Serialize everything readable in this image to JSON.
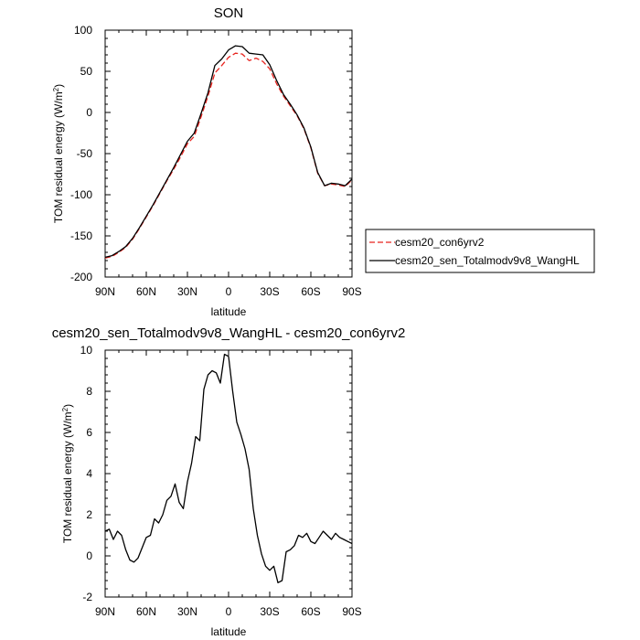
{
  "chart_data": [
    {
      "type": "line",
      "title": "SON",
      "xlabel": "latitude",
      "ylabel": "TOM residual energy (W/m",
      "ylabel_sup": "2",
      "ylabel_end": ")",
      "xlim": [
        90,
        -90
      ],
      "ylim": [
        -200,
        100
      ],
      "xticks": [
        90,
        60,
        30,
        0,
        -30,
        -60,
        -90
      ],
      "xtick_labels": [
        "90N",
        "60N",
        "30N",
        "0",
        "30S",
        "60S",
        "90S"
      ],
      "yticks": [
        -200,
        -150,
        -100,
        -50,
        0,
        50,
        100
      ],
      "ytick_labels": [
        "-200",
        "-150",
        "-100",
        "-50",
        "0",
        "50",
        "100"
      ],
      "legend": "outside-right",
      "grid": false,
      "x": [
        90,
        85,
        80,
        75,
        70,
        65,
        60,
        55,
        50,
        45,
        40,
        35,
        30,
        25,
        20,
        15,
        10,
        5,
        0,
        -5,
        -10,
        -15,
        -20,
        -25,
        -30,
        -35,
        -40,
        -45,
        -50,
        -55,
        -60,
        -65,
        -70,
        -75,
        -80,
        -85,
        -90
      ],
      "series": [
        {
          "name": "cesm20_con6yrv2",
          "color": "#e8231e",
          "dash": true,
          "values": [
            -177,
            -175,
            -170,
            -164,
            -154,
            -141,
            -127,
            -113,
            -98,
            -83,
            -69,
            -54,
            -38,
            -29,
            -5,
            20,
            48,
            57,
            67,
            72,
            71,
            63,
            66,
            62,
            53,
            35,
            20,
            8,
            -4,
            -20,
            -43,
            -74,
            -89,
            -87,
            -88,
            -90,
            -82
          ]
        },
        {
          "name": "cesm20_sen_Totalmodv9v8_WangHL",
          "color": "#000000",
          "dash": false,
          "values": [
            -176,
            -174,
            -169,
            -163,
            -153,
            -140,
            -126,
            -112,
            -97,
            -82,
            -67,
            -51,
            -35,
            -25,
            -1,
            24,
            57,
            65,
            76,
            81,
            80,
            72,
            71,
            70,
            58,
            39,
            22,
            10,
            -3,
            -19,
            -42,
            -73,
            -89,
            -86,
            -87,
            -89,
            -81
          ]
        }
      ]
    },
    {
      "type": "line",
      "title": "cesm20_sen_Totalmodv9v8_WangHL - cesm20_con6yrv2",
      "xlabel": "latitude",
      "ylabel": "TOM residual energy (W/m",
      "ylabel_sup": "2",
      "ylabel_end": ")",
      "xlim": [
        90,
        -90
      ],
      "ylim": [
        -2,
        10
      ],
      "xticks": [
        90,
        60,
        30,
        0,
        -30,
        -60,
        -90
      ],
      "xtick_labels": [
        "90N",
        "60N",
        "30N",
        "0",
        "30S",
        "60S",
        "90S"
      ],
      "yticks": [
        -2,
        0,
        2,
        4,
        6,
        8,
        10
      ],
      "ytick_labels": [
        "-2",
        "0",
        "2",
        "4",
        "6",
        "8",
        "10"
      ],
      "grid": false,
      "x": [
        90,
        87,
        84,
        81,
        78,
        75,
        72,
        69,
        66,
        63,
        60,
        57,
        54,
        51,
        48,
        45,
        42,
        39,
        36,
        33,
        30,
        27,
        24,
        21,
        18,
        15,
        12,
        9,
        6,
        3,
        0,
        -3,
        -6,
        -9,
        -12,
        -15,
        -18,
        -21,
        -24,
        -27,
        -30,
        -33,
        -36,
        -39,
        -42,
        -45,
        -48,
        -51,
        -54,
        -57,
        -60,
        -63,
        -66,
        -69,
        -72,
        -75,
        -78,
        -81,
        -84,
        -87,
        -90
      ],
      "series": [
        {
          "name": "",
          "color": "#000000",
          "values": [
            1.2,
            1.3,
            0.8,
            1.2,
            1.0,
            0.3,
            -0.2,
            -0.3,
            -0.1,
            0.4,
            0.9,
            1.0,
            1.8,
            1.6,
            2.0,
            2.7,
            2.9,
            3.5,
            2.6,
            2.3,
            3.6,
            4.5,
            5.8,
            5.6,
            8.1,
            8.8,
            9.0,
            8.9,
            8.4,
            9.8,
            9.7,
            8.0,
            6.5,
            5.9,
            5.2,
            4.2,
            2.3,
            1.0,
            0.1,
            -0.5,
            -0.7,
            -0.5,
            -1.3,
            -1.2,
            0.2,
            0.3,
            0.5,
            1.0,
            0.9,
            1.1,
            0.7,
            0.6,
            0.9,
            1.2,
            1.0,
            0.8,
            1.1,
            0.9,
            0.8,
            0.7,
            0.6
          ]
        }
      ]
    }
  ]
}
